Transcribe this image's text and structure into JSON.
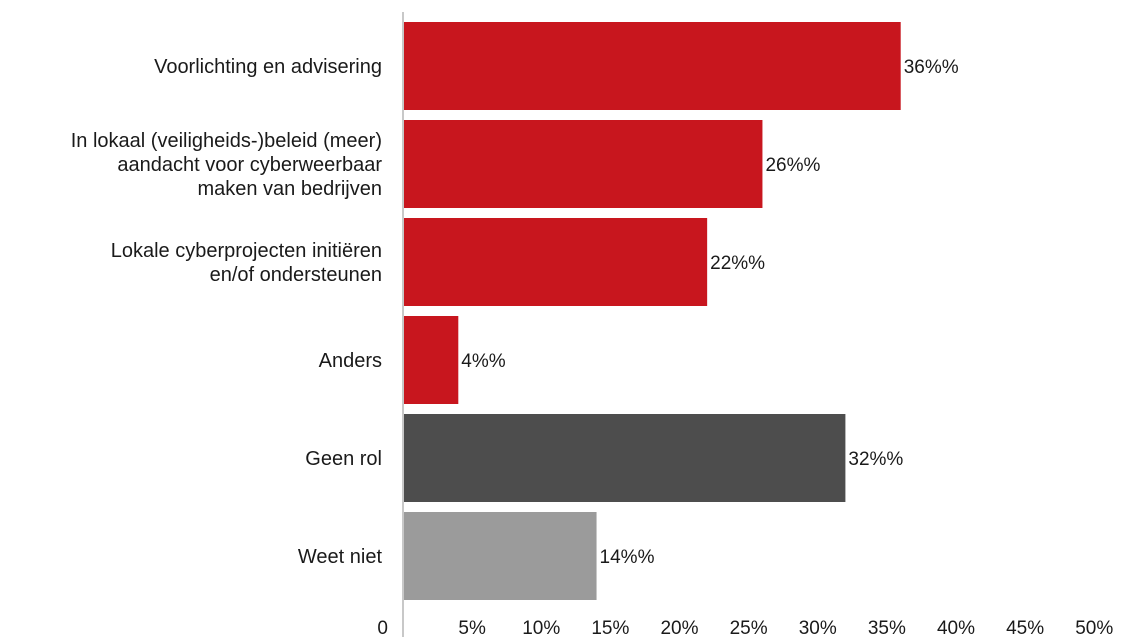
{
  "chart_data": {
    "type": "bar",
    "orientation": "horizontal",
    "categories": [
      [
        "Voorlichting en advisering"
      ],
      [
        "In lokaal (veiligheids-)beleid (meer)",
        "aandacht voor cyberweerbaar",
        "maken van bedrijven"
      ],
      [
        "Lokale cyberprojecten initiëren",
        "en/of ondersteunen"
      ],
      [
        "Anders"
      ],
      [
        "Geen rol"
      ],
      [
        "Weet niet"
      ]
    ],
    "values": [
      36,
      26,
      22,
      4,
      32,
      14
    ],
    "value_labels": [
      "36%%",
      "26%%",
      "22%%",
      "4%%",
      "32%%",
      "14%%"
    ],
    "colors": [
      "#c8161e",
      "#c8161e",
      "#c8161e",
      "#c8161e",
      "#4d4d4d",
      "#9b9b9b"
    ],
    "xlim": [
      0,
      50
    ],
    "x_ticks": [
      0,
      5,
      10,
      15,
      20,
      25,
      30,
      35,
      40,
      45,
      50
    ],
    "x_tick_labels": [
      "0",
      "5%",
      "10%",
      "15%",
      "20%",
      "25%",
      "30%",
      "35%",
      "40%",
      "45%",
      "50%"
    ],
    "title": "",
    "xlabel": "",
    "ylabel": "",
    "grid": false,
    "legend": "none"
  }
}
